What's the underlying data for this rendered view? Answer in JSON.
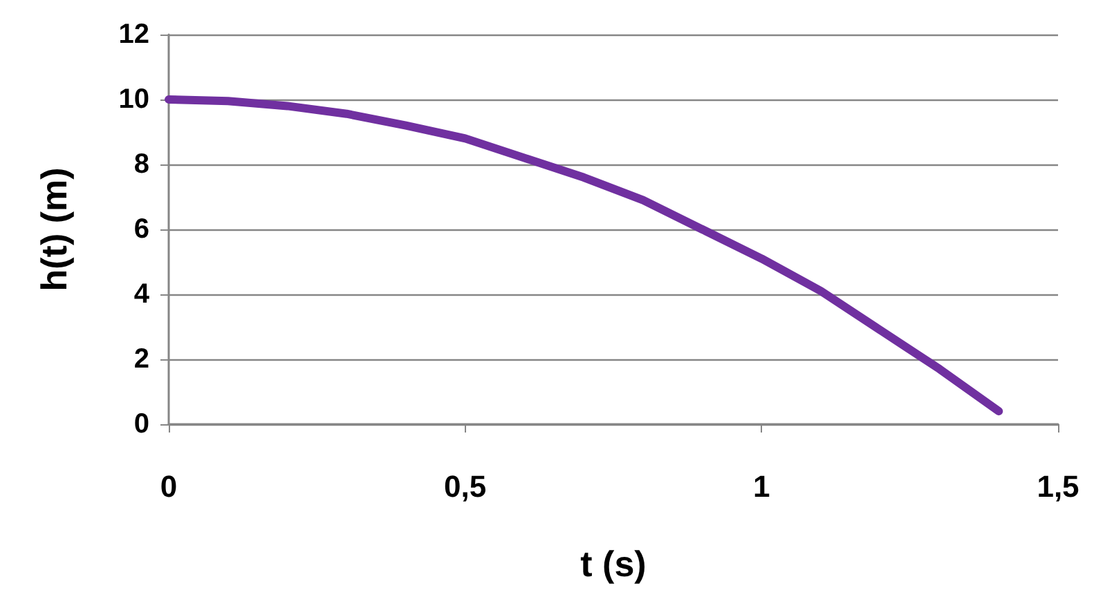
{
  "chart_data": {
    "type": "line",
    "xlabel": "t (s)",
    "ylabel": "h(t) (m)",
    "x": [
      0,
      0.1,
      0.2,
      0.3,
      0.4,
      0.5,
      0.6,
      0.7,
      0.8,
      0.9,
      1.0,
      1.1,
      1.2,
      1.3,
      1.4
    ],
    "series": [
      {
        "color": "#7030a0",
        "values": [
          10,
          9.95,
          9.8,
          9.56,
          9.2,
          8.8,
          8.2,
          7.6,
          6.9,
          6.0,
          5.1,
          4.1,
          2.9,
          1.7,
          0.4
        ]
      }
    ],
    "xlim": [
      0,
      1.5
    ],
    "xticks": [
      0,
      {
        "value": 0.5,
        "label": "0,5"
      },
      1,
      {
        "value": 1.5,
        "label": "1,5"
      }
    ],
    "ylim": [
      0,
      12
    ],
    "yticks": [
      0,
      2,
      4,
      6,
      8,
      10,
      12
    ],
    "grid": "y",
    "marker": "none",
    "line_style": "solid"
  }
}
